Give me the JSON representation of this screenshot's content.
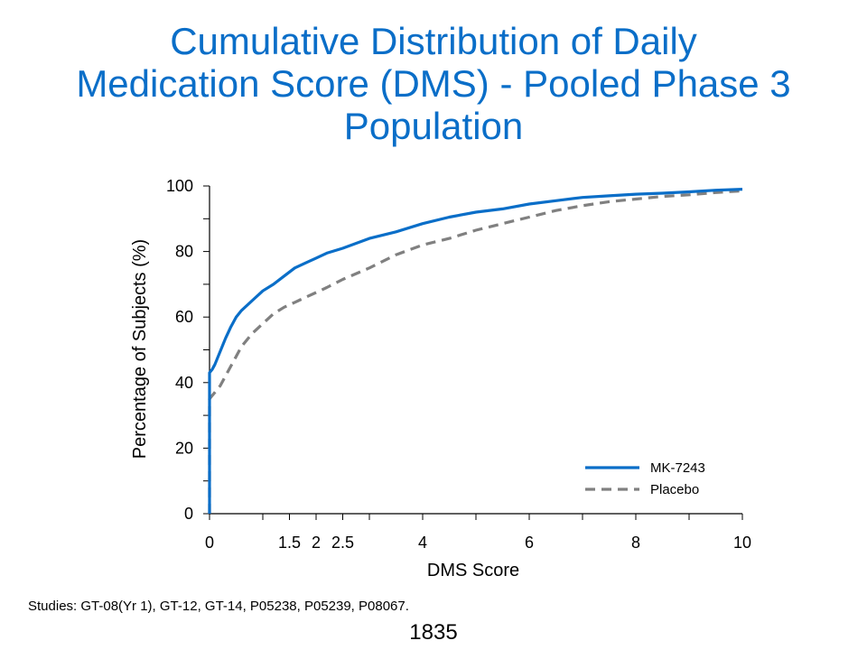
{
  "slide": {
    "title_lines": [
      "Cumulative Distribution of Daily",
      "Medication Score (DMS) - Pooled Phase 3",
      "Population"
    ],
    "footnote": "Studies: GT-08(Yr 1), GT-12, GT-14, P05238, P05239, P08067.",
    "slide_number": "1835"
  },
  "chart_data": {
    "type": "line",
    "title": "Cumulative Distribution of Daily Medication Score (DMS) - Pooled Phase 3 Population",
    "xlabel": "DMS Score",
    "ylabel": "Percentage of Subjects (%)",
    "xlim": [
      0,
      10
    ],
    "ylim": [
      0,
      100
    ],
    "x_ticks": [
      0,
      1.5,
      2,
      2.5,
      4,
      6,
      8,
      10
    ],
    "x_tick_labels": [
      "0",
      "1.5",
      "2",
      "2.5",
      "4",
      "6",
      "8",
      "10"
    ],
    "x_minor_ticks": [
      0,
      1,
      1.5,
      2,
      2.5,
      3,
      4,
      5,
      6,
      7,
      8,
      9,
      10
    ],
    "y_ticks": [
      0,
      20,
      40,
      60,
      80,
      100
    ],
    "y_tick_labels": [
      "0",
      "20",
      "40",
      "60",
      "80",
      "100"
    ],
    "y_minor_ticks": [
      0,
      10,
      20,
      30,
      40,
      50,
      60,
      70,
      80,
      90,
      100
    ],
    "grid": false,
    "legend_position": "bottom-right",
    "series": [
      {
        "name": "MK-7243",
        "color": "#0a6ec8",
        "dash": "solid",
        "x": [
          0,
          0,
          0.05,
          0.1,
          0.2,
          0.3,
          0.4,
          0.5,
          0.6,
          0.8,
          1.0,
          1.2,
          1.4,
          1.6,
          1.8,
          2.0,
          2.2,
          2.5,
          3.0,
          3.5,
          4.0,
          4.5,
          5.0,
          5.5,
          6.0,
          6.5,
          7.0,
          7.5,
          8.0,
          8.5,
          9.0,
          9.5,
          10.0
        ],
        "values": [
          0,
          43,
          44,
          45.5,
          49.5,
          53.5,
          57,
          60,
          62,
          65,
          68,
          70,
          72.5,
          75,
          76.5,
          78,
          79.5,
          81,
          84,
          86,
          88.5,
          90.5,
          92,
          93,
          94.5,
          95.5,
          96.5,
          97,
          97.5,
          97.8,
          98.2,
          98.7,
          99
        ]
      },
      {
        "name": "Placebo",
        "color": "#808080",
        "dash": "dashed",
        "x": [
          0,
          0,
          0.05,
          0.1,
          0.2,
          0.3,
          0.4,
          0.5,
          0.6,
          0.8,
          1.0,
          1.2,
          1.4,
          1.6,
          1.8,
          2.0,
          2.2,
          2.5,
          3.0,
          3.5,
          4.0,
          4.5,
          5.0,
          5.5,
          6.0,
          6.5,
          7.0,
          7.5,
          8.0,
          8.5,
          9.0,
          9.5,
          10.0
        ],
        "values": [
          0,
          35,
          36,
          37,
          39,
          42,
          45,
          48,
          51,
          55,
          58,
          61,
          63,
          64.5,
          66,
          67.5,
          69,
          71.5,
          75,
          79,
          82,
          84,
          86.5,
          88.5,
          90.5,
          92.5,
          94,
          95.2,
          96,
          96.8,
          97.3,
          98,
          98.5
        ]
      }
    ]
  }
}
